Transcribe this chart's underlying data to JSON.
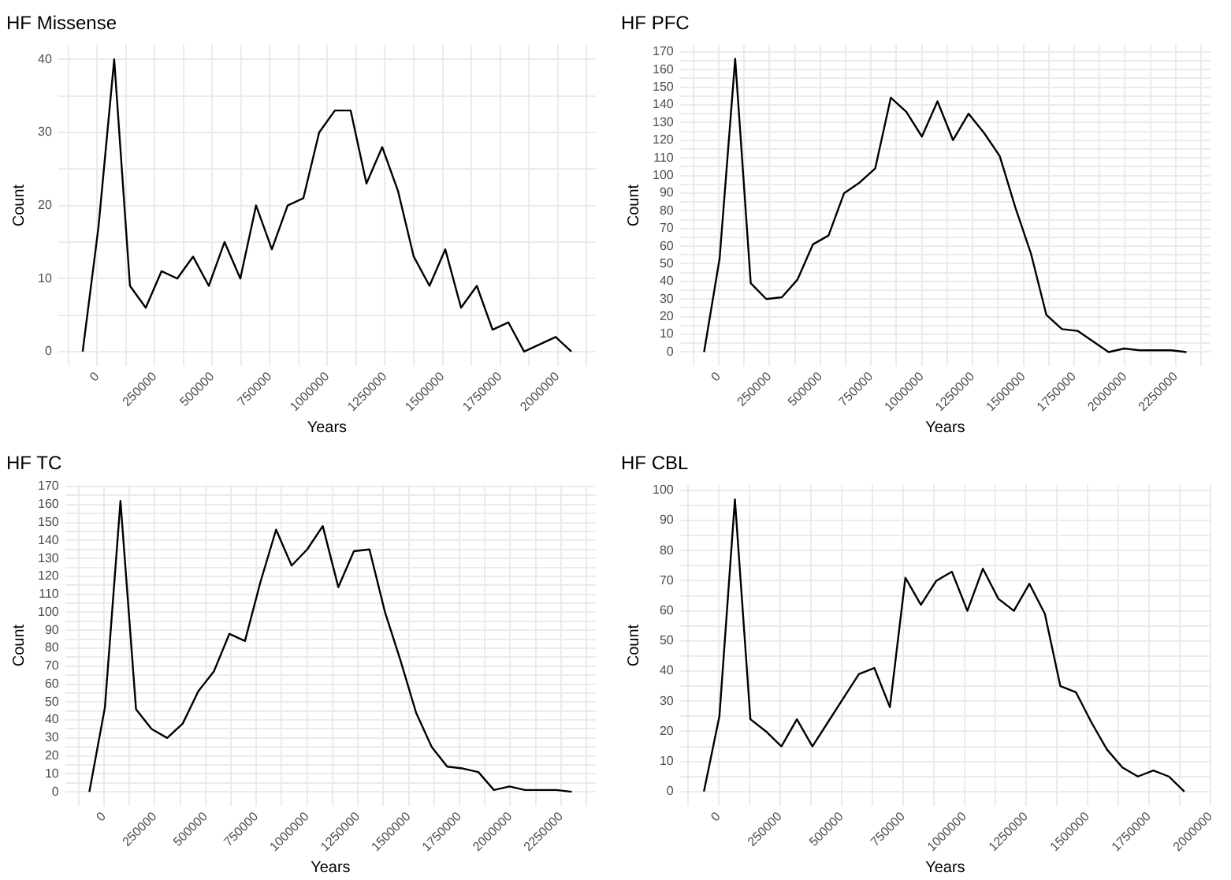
{
  "chart_data": [
    {
      "type": "line",
      "title": "HF Missense",
      "xlabel": "Years",
      "ylabel": "Count",
      "grid": true,
      "x": [
        -63500,
        5000,
        73500,
        142000,
        210500,
        279000,
        347500,
        416000,
        484500,
        553000,
        621500,
        690000,
        758500,
        827000,
        895500,
        964000,
        1032500,
        1101000,
        1169500,
        1238000,
        1306500,
        1375000,
        1443500,
        1512000,
        1580500,
        1649000,
        1717500,
        1786000,
        1854500,
        1923000,
        1991500,
        2060000
      ],
      "series": [
        {
          "color": "#000000",
          "values": [
            0,
            17,
            40,
            9,
            6,
            11,
            10,
            13,
            9,
            15,
            10,
            20,
            14,
            20,
            21,
            30,
            33,
            33,
            23,
            28,
            22,
            13,
            9,
            14,
            6,
            9,
            3,
            4,
            0,
            1,
            2,
            0
          ]
        }
      ],
      "xlim": [
        -170000,
        2166000
      ],
      "xticks": [
        {
          "value": -125000,
          "label": null
        },
        0,
        {
          "value": 125000,
          "label": null
        },
        250000,
        {
          "value": 375000,
          "label": null
        },
        500000,
        {
          "value": 625000,
          "label": null
        },
        750000,
        {
          "value": 875000,
          "label": null
        },
        1000000,
        {
          "value": 1125000,
          "label": null
        },
        1250000,
        {
          "value": 1375000,
          "label": null
        },
        1500000,
        {
          "value": 1625000,
          "label": null
        },
        1750000,
        {
          "value": 1875000,
          "label": null
        },
        2000000,
        {
          "value": 2125000,
          "label": null
        }
      ],
      "ylim": [
        -2,
        42
      ],
      "yticks": [
        0,
        {
          "value": 5,
          "label": null
        },
        10,
        {
          "value": 15,
          "label": null
        },
        20,
        {
          "value": 25,
          "label": null
        },
        30,
        {
          "value": 35,
          "label": null
        },
        40
      ]
    },
    {
      "type": "line",
      "title": "HF PFC",
      "xlabel": "Years",
      "ylabel": "Count",
      "grid": true,
      "x": [
        -72000,
        4600,
        81200,
        157800,
        234400,
        311000,
        387600,
        464200,
        540800,
        617400,
        694000,
        770600,
        847200,
        923800,
        1000400,
        1077000,
        1153600,
        1230200,
        1306800,
        1383400,
        1460000,
        1536600,
        1613200,
        1689800,
        1766400,
        1843000,
        1919600,
        1996200,
        2072800,
        2149400,
        2226000,
        2302600
      ],
      "series": [
        {
          "color": "#000000",
          "values": [
            0,
            53,
            166,
            39,
            30,
            31,
            41,
            61,
            66,
            90,
            96,
            104,
            144,
            136,
            122,
            142,
            120,
            135,
            124,
            111,
            82,
            56,
            21,
            13,
            12,
            6,
            0,
            2,
            1,
            1,
            1,
            0
          ]
        }
      ],
      "xlim": [
        -191000,
        2421000
      ],
      "xticks": [
        {
          "value": -125000,
          "label": null
        },
        0,
        {
          "value": 125000,
          "label": null
        },
        250000,
        {
          "value": 375000,
          "label": null
        },
        500000,
        {
          "value": 625000,
          "label": null
        },
        750000,
        {
          "value": 875000,
          "label": null
        },
        1000000,
        {
          "value": 1125000,
          "label": null
        },
        1250000,
        {
          "value": 1375000,
          "label": null
        },
        1500000,
        {
          "value": 1625000,
          "label": null
        },
        1750000,
        {
          "value": 1875000,
          "label": null
        },
        2000000,
        {
          "value": 2125000,
          "label": null
        },
        2250000,
        {
          "value": 2375000,
          "label": null
        }
      ],
      "ylim": [
        -8,
        174
      ],
      "yticks": [
        0,
        {
          "value": 5,
          "label": null
        },
        10,
        {
          "value": 15,
          "label": null
        },
        20,
        {
          "value": 25,
          "label": null
        },
        30,
        {
          "value": 35,
          "label": null
        },
        40,
        {
          "value": 45,
          "label": null
        },
        50,
        {
          "value": 55,
          "label": null
        },
        60,
        {
          "value": 65,
          "label": null
        },
        70,
        {
          "value": 75,
          "label": null
        },
        80,
        {
          "value": 85,
          "label": null
        },
        90,
        {
          "value": 95,
          "label": null
        },
        100,
        {
          "value": 105,
          "label": null
        },
        110,
        {
          "value": 115,
          "label": null
        },
        120,
        {
          "value": 125,
          "label": null
        },
        130,
        {
          "value": 135,
          "label": null
        },
        140,
        {
          "value": 145,
          "label": null
        },
        150,
        {
          "value": 155,
          "label": null
        },
        160,
        {
          "value": 165,
          "label": null
        },
        170
      ]
    },
    {
      "type": "line",
      "title": "HF TC",
      "xlabel": "Years",
      "ylabel": "Count",
      "grid": true,
      "x": [
        -72000,
        4600,
        81200,
        157800,
        234400,
        311000,
        387600,
        464200,
        540800,
        617400,
        694000,
        770600,
        847200,
        923800,
        1000400,
        1077000,
        1153600,
        1230200,
        1306800,
        1383400,
        1460000,
        1536600,
        1613200,
        1689800,
        1766400,
        1843000,
        1919600,
        1996200,
        2072800,
        2149400,
        2226000,
        2302600
      ],
      "series": [
        {
          "color": "#000000",
          "values": [
            0,
            47,
            162,
            46,
            35,
            30,
            38,
            56,
            67,
            88,
            84,
            117,
            146,
            126,
            135,
            148,
            114,
            134,
            135,
            100,
            73,
            44,
            25,
            14,
            13,
            11,
            1,
            3,
            1,
            1,
            1,
            0
          ]
        }
      ],
      "xlim": [
        -191000,
        2421000
      ],
      "xticks": [
        {
          "value": -125000,
          "label": null
        },
        0,
        {
          "value": 125000,
          "label": null
        },
        250000,
        {
          "value": 375000,
          "label": null
        },
        500000,
        {
          "value": 625000,
          "label": null
        },
        750000,
        {
          "value": 875000,
          "label": null
        },
        1000000,
        {
          "value": 1125000,
          "label": null
        },
        1250000,
        {
          "value": 1375000,
          "label": null
        },
        1500000,
        {
          "value": 1625000,
          "label": null
        },
        1750000,
        {
          "value": 1875000,
          "label": null
        },
        2000000,
        {
          "value": 2125000,
          "label": null
        },
        2250000,
        {
          "value": 2375000,
          "label": null
        }
      ],
      "ylim": [
        -8,
        171
      ],
      "yticks": [
        0,
        {
          "value": 5,
          "label": null
        },
        10,
        {
          "value": 15,
          "label": null
        },
        20,
        {
          "value": 25,
          "label": null
        },
        30,
        {
          "value": 35,
          "label": null
        },
        40,
        {
          "value": 45,
          "label": null
        },
        50,
        {
          "value": 55,
          "label": null
        },
        60,
        {
          "value": 65,
          "label": null
        },
        70,
        {
          "value": 75,
          "label": null
        },
        80,
        {
          "value": 85,
          "label": null
        },
        90,
        {
          "value": 95,
          "label": null
        },
        100,
        {
          "value": 105,
          "label": null
        },
        110,
        {
          "value": 115,
          "label": null
        },
        120,
        {
          "value": 125,
          "label": null
        },
        130,
        {
          "value": 135,
          "label": null
        },
        140,
        {
          "value": 145,
          "label": null
        },
        150,
        {
          "value": 155,
          "label": null
        },
        160,
        {
          "value": 165,
          "label": null
        },
        170
      ]
    },
    {
      "type": "line",
      "title": "HF CBL",
      "xlabel": "Years",
      "ylabel": "Count",
      "grid": true,
      "x": [
        -59300,
        3700,
        66700,
        129700,
        192700,
        255700,
        318700,
        381700,
        444700,
        507700,
        570700,
        633700,
        696700,
        759700,
        822700,
        885700,
        948700,
        1011700,
        1074700,
        1137700,
        1200700,
        1263700,
        1326700,
        1389700,
        1452700,
        1515700,
        1578700,
        1641700,
        1704700,
        1767700,
        1830700,
        1893700
      ],
      "series": [
        {
          "color": "#000000",
          "values": [
            0,
            25,
            97,
            24,
            20,
            15,
            24,
            15,
            23,
            31,
            39,
            41,
            28,
            71,
            62,
            70,
            73,
            60,
            74,
            64,
            60,
            69,
            59,
            35,
            33,
            23,
            14,
            8,
            5,
            7,
            5,
            0
          ]
        }
      ],
      "xlim": [
        -157000,
        2000000
      ],
      "xticks": [
        {
          "value": -125000,
          "label": null
        },
        0,
        {
          "value": 125000,
          "label": null
        },
        250000,
        {
          "value": 375000,
          "label": null
        },
        500000,
        {
          "value": 625000,
          "label": null
        },
        750000,
        {
          "value": 875000,
          "label": null
        },
        1000000,
        {
          "value": 1125000,
          "label": null
        },
        1250000,
        {
          "value": 1375000,
          "label": null
        },
        1500000,
        {
          "value": 1625000,
          "label": null
        },
        1750000,
        {
          "value": 1875000,
          "label": null
        },
        2000000
      ],
      "ylim": [
        -4.85,
        101.85
      ],
      "yticks": [
        0,
        {
          "value": 5,
          "label": null
        },
        10,
        {
          "value": 15,
          "label": null
        },
        20,
        {
          "value": 25,
          "label": null
        },
        30,
        {
          "value": 35,
          "label": null
        },
        40,
        {
          "value": 45,
          "label": null
        },
        50,
        {
          "value": 55,
          "label": null
        },
        60,
        {
          "value": 65,
          "label": null
        },
        70,
        {
          "value": 75,
          "label": null
        },
        80,
        {
          "value": 85,
          "label": null
        },
        90,
        {
          "value": 95,
          "label": null
        },
        100
      ]
    }
  ]
}
